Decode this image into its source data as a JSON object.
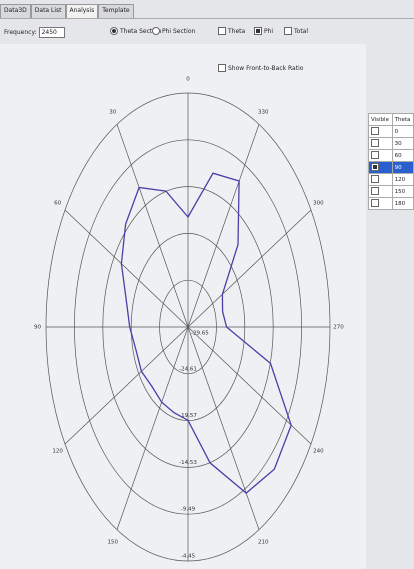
{
  "tabs": [
    "Data3D",
    "Data List",
    "Analysis",
    "Template"
  ],
  "active_tab": 2,
  "frequency": {
    "label": "Frequency:",
    "value": 2450
  },
  "radios": [
    {
      "label": "Theta Section",
      "selected": true
    },
    {
      "label": "Phi Section",
      "selected": false
    }
  ],
  "checkboxes": [
    {
      "label": "Theta",
      "checked": false
    },
    {
      "label": "Phi",
      "checked": true
    },
    {
      "label": "Total",
      "checked": false
    }
  ],
  "front_back": {
    "label": "Show Front-to-Back Ratio",
    "checked": false
  },
  "table": {
    "headers": [
      "Visible",
      "Theta"
    ],
    "rows": [
      {
        "visible": false,
        "theta": 0,
        "selected": false
      },
      {
        "visible": false,
        "theta": 30,
        "selected": false
      },
      {
        "visible": false,
        "theta": 60,
        "selected": false
      },
      {
        "visible": true,
        "theta": 90,
        "selected": true
      },
      {
        "visible": false,
        "theta": 120,
        "selected": false
      },
      {
        "visible": false,
        "theta": 150,
        "selected": false
      },
      {
        "visible": false,
        "theta": 180,
        "selected": false
      }
    ]
  },
  "chart_data": {
    "type": "polar",
    "angle_ticks": [
      0,
      30,
      60,
      90,
      120,
      150,
      180,
      210,
      240,
      270,
      300,
      330
    ],
    "rlim": [
      -29.65,
      -4.45
    ],
    "rticks": [
      -29.65,
      -24.61,
      -19.57,
      -14.53,
      -9.49,
      -4.45
    ],
    "series": [
      {
        "color": "#4a3fa8",
        "x": [
          0,
          15,
          30,
          45,
          60,
          75,
          90,
          105,
          120,
          135,
          150,
          165,
          180,
          195,
          210,
          225,
          240,
          255,
          270,
          285,
          300,
          315,
          330,
          345
        ],
        "values": [
          -17.8,
          -14.5,
          -12.3,
          -14.0,
          -16.0,
          -18.3,
          -19.3,
          -20.1,
          -20.1,
          -20.6,
          -20.3,
          -20.1,
          -19.6,
          -14.5,
          -9.0,
          -8.0,
          -8.5,
          -14.5,
          -22.8,
          -23.3,
          -22.6,
          -17.1,
          -11.5,
          -12.5
        ]
      }
    ]
  }
}
